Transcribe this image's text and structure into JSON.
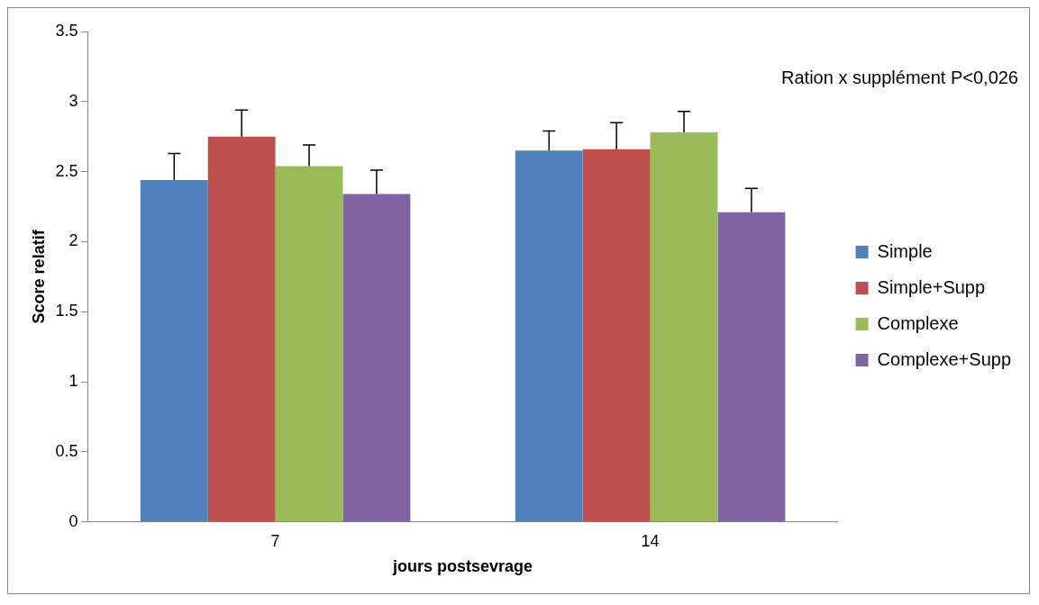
{
  "chart_data": {
    "type": "bar",
    "xlabel": "jours postsevrage",
    "ylabel": "Score relatif",
    "categories": [
      "7",
      "14"
    ],
    "series": [
      {
        "name": "Simple",
        "color": "#4f81bd",
        "values": [
          2.44,
          2.65
        ],
        "errors": [
          [
            2.44,
            2.63
          ],
          [
            2.65,
            2.79
          ]
        ]
      },
      {
        "name": "Simple+Supp",
        "color": "#c0504d",
        "values": [
          2.75,
          2.66
        ],
        "errors": [
          [
            2.75,
            2.94
          ],
          [
            2.66,
            2.85
          ]
        ]
      },
      {
        "name": "Complexe",
        "color": "#9bbb59",
        "values": [
          2.54,
          2.78
        ],
        "errors": [
          [
            2.54,
            2.69
          ],
          [
            2.78,
            2.93
          ]
        ]
      },
      {
        "name": "Complexe+Supp",
        "color": "#8064a2",
        "values": [
          2.34,
          2.21
        ],
        "errors": [
          [
            2.34,
            2.51
          ],
          [
            2.21,
            2.38
          ]
        ]
      }
    ],
    "ylim": [
      0,
      3.5
    ],
    "yticks": [
      0,
      0.5,
      1,
      1.5,
      2,
      2.5,
      3,
      3.5
    ],
    "grid": false,
    "legend": "right",
    "annotations": [
      "Ration x supplément P<0,026"
    ]
  }
}
